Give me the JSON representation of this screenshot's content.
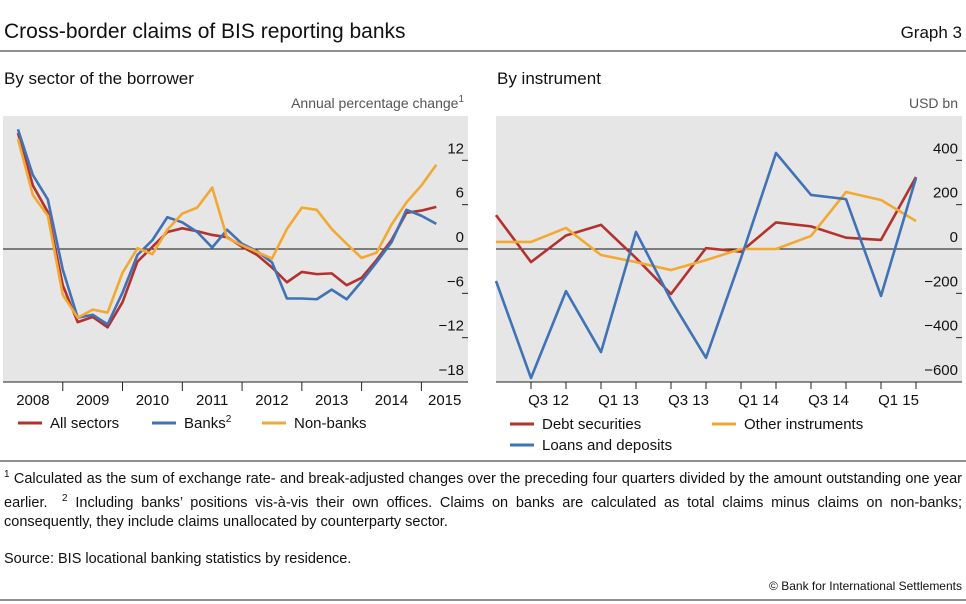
{
  "title": "Cross-border claims of BIS reporting banks",
  "graph_label": "Graph 3",
  "chart_data": [
    {
      "type": "line",
      "title": "By sector of the borrower",
      "y_label": "Annual percentage change",
      "y_label_superscript": "1",
      "x": [
        2008.25,
        2008.5,
        2008.75,
        2009,
        2009.25,
        2009.5,
        2009.75,
        2010,
        2010.25,
        2010.5,
        2010.75,
        2011,
        2011.25,
        2011.5,
        2011.75,
        2012,
        2012.25,
        2012.5,
        2012.75,
        2013,
        2013.25,
        2013.5,
        2013.75,
        2014,
        2014.25,
        2014.5,
        2014.75,
        2015,
        2015.25
      ],
      "xlim": [
        2008,
        2015.78
      ],
      "xticks": [
        2008,
        2009,
        2010,
        2011,
        2012,
        2013,
        2014,
        2015
      ],
      "ylim": [
        -18,
        18
      ],
      "yticks": [
        12,
        6,
        0,
        {
          "value": -6,
          "label": "−6"
        },
        {
          "value": -12,
          "label": "−12"
        },
        {
          "value": -18,
          "label": "−18"
        }
      ],
      "zero_line": true,
      "legend": "below",
      "series": [
        {
          "name": "All sectors",
          "color": "#b3322e",
          "values": [
            15.7,
            8.6,
            5,
            -4.9,
            -9.9,
            -9.2,
            -10.6,
            -7.2,
            -1.7,
            0.3,
            2.3,
            2.8,
            2.4,
            1.9,
            1.6,
            0.3,
            -0.8,
            -2.5,
            -4.5,
            -3.1,
            -3.4,
            -3.3,
            -4.9,
            -3.9,
            -1.5,
            1.2,
            4.9,
            5.2,
            5.7
          ]
        },
        {
          "name": "Banks",
          "name_superscript": "2",
          "color": "#3f72b6",
          "values": [
            16.2,
            10,
            6.7,
            -2.8,
            -9.3,
            -8.9,
            -10.2,
            -5.9,
            -0.8,
            1.2,
            4.3,
            3.6,
            2.3,
            0.2,
            2.6,
            0.7,
            -0.3,
            -1.8,
            -6.7,
            -6.7,
            -6.8,
            -5.5,
            -6.8,
            -4.4,
            -1.8,
            0.9,
            5.3,
            4.5,
            3.4
          ]
        },
        {
          "name": "Non-banks",
          "color": "#f2a933",
          "values": [
            14.9,
            7.3,
            4.5,
            -6.2,
            -9.3,
            -8.2,
            -8.6,
            -3.2,
            0.1,
            -0.7,
            2.6,
            4.8,
            5.6,
            8.3,
            1.5,
            0.5,
            -0.4,
            -1.3,
            2.7,
            5.6,
            5.3,
            2.7,
            0.7,
            -1.2,
            -0.5,
            3.3,
            6.3,
            8.6,
            11.4
          ]
        }
      ]
    },
    {
      "type": "line",
      "title": "By instrument",
      "y_label": "USD bn",
      "categories": [
        null,
        null,
        "Q3 12",
        null,
        "Q1 13",
        null,
        "Q3 13",
        null,
        "Q1 14",
        null,
        "Q3 14",
        null,
        "Q1 15"
      ],
      "ylim": [
        -600,
        600
      ],
      "yticks": [
        400,
        200,
        0,
        {
          "value": -200,
          "label": "−200"
        },
        {
          "value": -400,
          "label": "−400"
        },
        {
          "value": -600,
          "label": "−600"
        }
      ],
      "zero_line": true,
      "legend": "below",
      "series": [
        {
          "name": "Debt securities",
          "color": "#b3322e",
          "values": [
            153,
            -59,
            61,
            109,
            -41,
            -203,
            4,
            -12,
            120,
            102,
            51,
            41,
            325
          ]
        },
        {
          "name": "Other instruments",
          "color": "#f2a933",
          "values": [
            32,
            32,
            95,
            -27,
            -59,
            -95,
            -50,
            0,
            0,
            59,
            257,
            221,
            126
          ]
        },
        {
          "name": "Loans and deposits",
          "color": "#3f72b6",
          "values": [
            -144,
            -582,
            -190,
            -465,
            77,
            -230,
            -491,
            -41,
            433,
            244,
            225,
            -212,
            321
          ]
        }
      ]
    }
  ],
  "footnotes": [
    {
      "marker": "1",
      "text": "Calculated as the sum of exchange rate- and break-adjusted changes over the preceding four quarters divided by the amount outstanding one year earlier."
    },
    {
      "marker": "2",
      "text": "Including banks’ positions vis-à-vis their own offices. Claims on banks are calculated as total claims minus claims on non-banks; consequently, they include claims unallocated by counterparty sector."
    }
  ],
  "source": "Source: BIS locational banking statistics by residence.",
  "copyright": "© Bank for International Settlements"
}
